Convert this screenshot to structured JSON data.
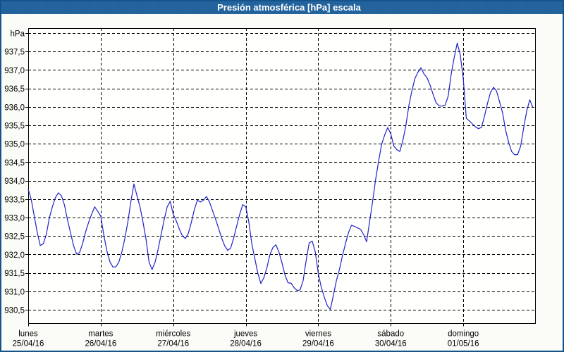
{
  "window": {
    "title": "Presión atmosférica [hPa] escala"
  },
  "colors": {
    "titlebar_blue": "#1e5d94",
    "titlebar_dot_blue": "#2d6dab",
    "window_border_blue": "#15538d",
    "content_background": "#fbfcf7",
    "plot_background": "#fffffe",
    "grid_black": "#000000",
    "series_blue": "#2222c8",
    "label_black": "#000000",
    "title_white": "#ffffff"
  },
  "chart_data": {
    "type": "line",
    "title": "Presión atmosférica [hPa] escala",
    "ylabel": "hPa",
    "xlabel": "",
    "grid": "dashed black, on",
    "legend": "none",
    "sampling": "hourly, 24 points per day, 7 days",
    "ylim_gridlines": [
      930.5,
      938.0
    ],
    "y_tick_step": 0.5,
    "y_axis": {
      "unit_label": "hPa",
      "top_value": 938.0,
      "bottom_value": 930.5,
      "tick_labels": [
        "937,5",
        "937,0",
        "936,5",
        "936,0",
        "935,5",
        "935,0",
        "934,5",
        "934,0",
        "933,5",
        "933,0",
        "932,5",
        "932,0",
        "931,5",
        "931,0",
        "930,5"
      ]
    },
    "x_axis": {
      "days": [
        {
          "name": "lunes",
          "date": "25/04/16"
        },
        {
          "name": "martes",
          "date": "26/04/16"
        },
        {
          "name": "miércoles",
          "date": "27/04/16"
        },
        {
          "name": "jueves",
          "date": "28/04/16"
        },
        {
          "name": "viernes",
          "date": "29/04/16"
        },
        {
          "name": "sábado",
          "date": "30/04/16"
        },
        {
          "name": "domingo",
          "date": "01/05/16"
        }
      ]
    },
    "series": [
      {
        "name": "presión atmosférica",
        "color": "#2222c8",
        "values_hpa": [
          933.78,
          933.5,
          933.05,
          932.6,
          932.25,
          932.3,
          932.55,
          933.0,
          933.3,
          933.55,
          933.68,
          933.6,
          933.35,
          932.95,
          932.6,
          932.25,
          932.02,
          932.06,
          932.3,
          932.62,
          932.88,
          933.1,
          933.3,
          933.18,
          933.05,
          932.55,
          932.12,
          931.82,
          931.67,
          931.67,
          931.8,
          932.08,
          932.45,
          932.9,
          933.45,
          933.92,
          933.6,
          933.3,
          932.88,
          932.42,
          931.8,
          931.6,
          931.8,
          932.15,
          932.55,
          932.95,
          933.3,
          933.45,
          933.1,
          932.92,
          932.7,
          932.52,
          932.44,
          932.58,
          932.88,
          933.23,
          933.48,
          933.43,
          933.48,
          933.58,
          933.43,
          933.2,
          932.97,
          932.72,
          932.46,
          932.25,
          932.12,
          932.18,
          932.45,
          932.78,
          933.1,
          933.36,
          933.3,
          932.9,
          932.3,
          931.9,
          931.5,
          931.22,
          931.38,
          931.65,
          932.0,
          932.2,
          932.27,
          932.07,
          931.78,
          931.45,
          931.24,
          931.23,
          931.11,
          931.03,
          931.05,
          931.3,
          931.85,
          932.32,
          932.37,
          932.08,
          931.5,
          931.12,
          930.85,
          930.62,
          930.52,
          930.9,
          931.3,
          931.6,
          931.97,
          932.3,
          932.6,
          932.8,
          932.77,
          932.73,
          932.69,
          932.55,
          932.35,
          932.9,
          933.45,
          934.05,
          934.55,
          935.0,
          935.25,
          935.45,
          935.28,
          934.95,
          934.85,
          934.8,
          935.1,
          935.5,
          936.05,
          936.45,
          936.78,
          936.95,
          937.07,
          936.9,
          936.8,
          936.6,
          936.35,
          936.12,
          936.04,
          936.03,
          936.06,
          936.3,
          936.9,
          937.35,
          937.74,
          937.42,
          936.77,
          935.7,
          935.63,
          935.55,
          935.47,
          935.42,
          935.45,
          935.75,
          936.1,
          936.4,
          936.54,
          936.44,
          936.15,
          935.85,
          935.38,
          935.05,
          934.8,
          934.71,
          934.72,
          934.95,
          935.45,
          935.9,
          936.2,
          936.0
        ]
      }
    ]
  }
}
